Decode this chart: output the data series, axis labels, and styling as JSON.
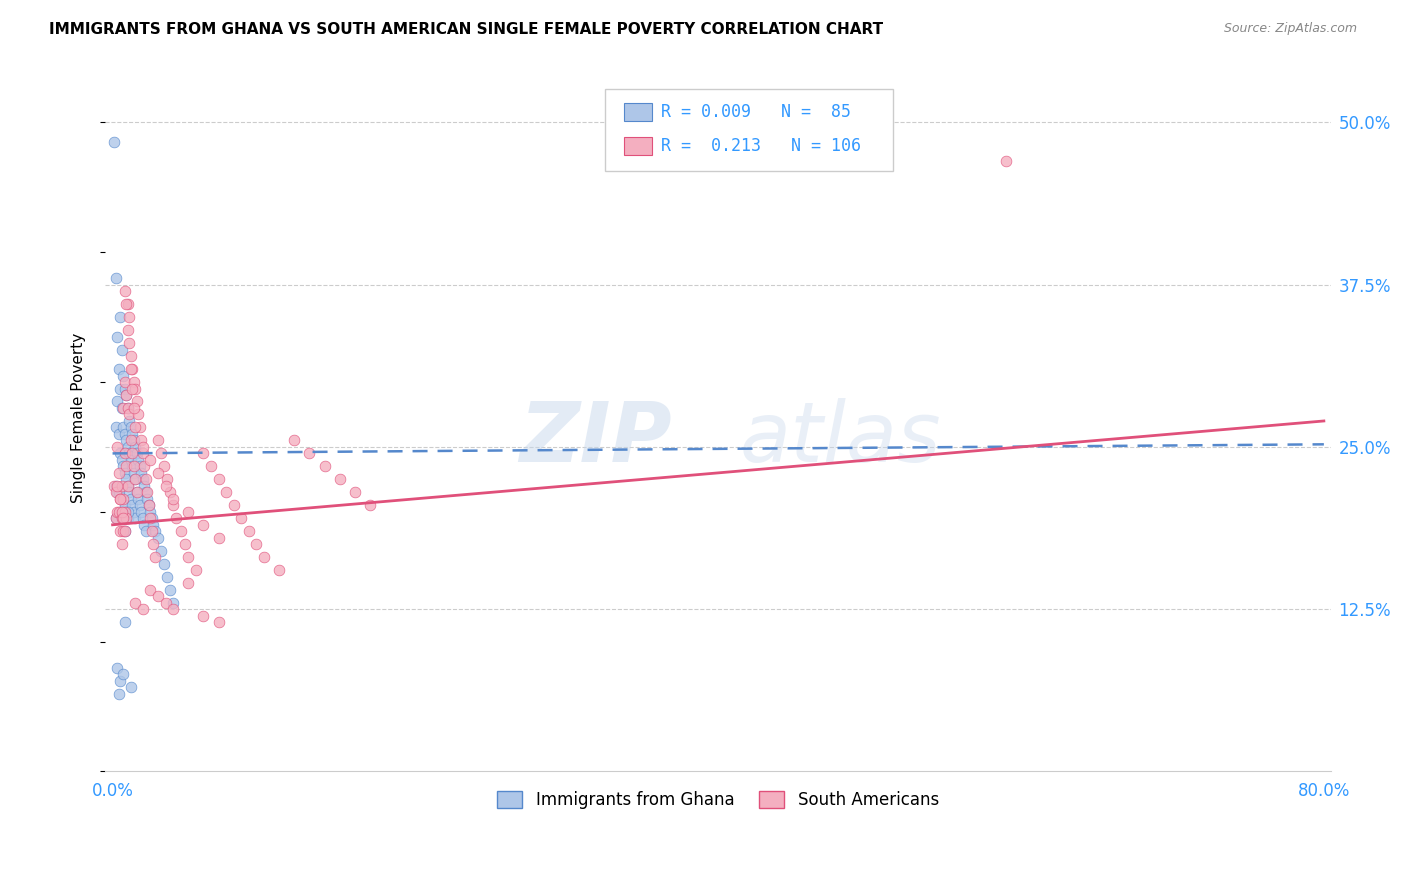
{
  "title": "IMMIGRANTS FROM GHANA VS SOUTH AMERICAN SINGLE FEMALE POVERTY CORRELATION CHART",
  "source": "Source: ZipAtlas.com",
  "ylabel": "Single Female Poverty",
  "legend_label1": "Immigrants from Ghana",
  "legend_label2": "South Americans",
  "R1": 0.009,
  "N1": 85,
  "R2": 0.213,
  "N2": 106,
  "color1": "#aec6e8",
  "color2": "#f4afc0",
  "line_color1": "#5588cc",
  "line_color2": "#e0507a",
  "xlim_min": 0.0,
  "xlim_max": 0.8,
  "ylim_min": 0.0,
  "ylim_max": 0.545,
  "ghana_x": [
    0.001,
    0.002,
    0.002,
    0.002,
    0.003,
    0.003,
    0.003,
    0.004,
    0.004,
    0.004,
    0.005,
    0.005,
    0.005,
    0.005,
    0.006,
    0.006,
    0.006,
    0.006,
    0.007,
    0.007,
    0.007,
    0.007,
    0.008,
    0.008,
    0.008,
    0.008,
    0.008,
    0.009,
    0.009,
    0.009,
    0.009,
    0.01,
    0.01,
    0.01,
    0.01,
    0.011,
    0.011,
    0.011,
    0.012,
    0.012,
    0.012,
    0.013,
    0.013,
    0.013,
    0.014,
    0.014,
    0.014,
    0.015,
    0.015,
    0.015,
    0.016,
    0.016,
    0.017,
    0.017,
    0.018,
    0.018,
    0.019,
    0.019,
    0.02,
    0.02,
    0.021,
    0.021,
    0.022,
    0.022,
    0.023,
    0.024,
    0.025,
    0.026,
    0.027,
    0.028,
    0.03,
    0.032,
    0.034,
    0.036,
    0.038,
    0.04,
    0.002,
    0.01,
    0.012,
    0.006,
    0.008,
    0.003,
    0.005,
    0.007,
    0.004
  ],
  "ghana_y": [
    0.485,
    0.38,
    0.265,
    0.195,
    0.335,
    0.285,
    0.215,
    0.31,
    0.26,
    0.215,
    0.35,
    0.295,
    0.245,
    0.2,
    0.325,
    0.28,
    0.24,
    0.195,
    0.305,
    0.265,
    0.235,
    0.2,
    0.295,
    0.26,
    0.23,
    0.205,
    0.185,
    0.29,
    0.255,
    0.225,
    0.2,
    0.28,
    0.25,
    0.22,
    0.195,
    0.27,
    0.245,
    0.215,
    0.265,
    0.24,
    0.21,
    0.26,
    0.235,
    0.205,
    0.255,
    0.23,
    0.2,
    0.25,
    0.225,
    0.195,
    0.245,
    0.215,
    0.24,
    0.21,
    0.235,
    0.205,
    0.23,
    0.2,
    0.225,
    0.195,
    0.22,
    0.19,
    0.215,
    0.185,
    0.21,
    0.205,
    0.2,
    0.195,
    0.19,
    0.185,
    0.18,
    0.17,
    0.16,
    0.15,
    0.14,
    0.13,
    0.22,
    0.2,
    0.065,
    0.2,
    0.115,
    0.08,
    0.07,
    0.075,
    0.06
  ],
  "sa_x": [
    0.001,
    0.002,
    0.002,
    0.003,
    0.003,
    0.004,
    0.004,
    0.005,
    0.005,
    0.006,
    0.006,
    0.006,
    0.007,
    0.007,
    0.007,
    0.008,
    0.008,
    0.008,
    0.009,
    0.009,
    0.009,
    0.01,
    0.01,
    0.01,
    0.011,
    0.011,
    0.012,
    0.012,
    0.013,
    0.013,
    0.014,
    0.014,
    0.015,
    0.015,
    0.016,
    0.016,
    0.017,
    0.018,
    0.019,
    0.02,
    0.021,
    0.022,
    0.023,
    0.024,
    0.025,
    0.026,
    0.027,
    0.028,
    0.03,
    0.032,
    0.034,
    0.036,
    0.038,
    0.04,
    0.042,
    0.045,
    0.048,
    0.05,
    0.055,
    0.06,
    0.065,
    0.07,
    0.075,
    0.08,
    0.085,
    0.09,
    0.095,
    0.1,
    0.11,
    0.12,
    0.13,
    0.14,
    0.15,
    0.16,
    0.17,
    0.008,
    0.009,
    0.01,
    0.011,
    0.012,
    0.013,
    0.014,
    0.015,
    0.02,
    0.025,
    0.03,
    0.035,
    0.04,
    0.05,
    0.06,
    0.07,
    0.003,
    0.005,
    0.006,
    0.007,
    0.008,
    0.59,
    0.015,
    0.02,
    0.025,
    0.03,
    0.035,
    0.04,
    0.05,
    0.06,
    0.07
  ],
  "sa_y": [
    0.22,
    0.215,
    0.195,
    0.25,
    0.2,
    0.23,
    0.2,
    0.21,
    0.185,
    0.22,
    0.195,
    0.175,
    0.28,
    0.21,
    0.185,
    0.3,
    0.245,
    0.2,
    0.29,
    0.235,
    0.195,
    0.36,
    0.28,
    0.22,
    0.35,
    0.275,
    0.32,
    0.255,
    0.31,
    0.245,
    0.3,
    0.235,
    0.295,
    0.225,
    0.285,
    0.215,
    0.275,
    0.265,
    0.255,
    0.245,
    0.235,
    0.225,
    0.215,
    0.205,
    0.195,
    0.185,
    0.175,
    0.165,
    0.255,
    0.245,
    0.235,
    0.225,
    0.215,
    0.205,
    0.195,
    0.185,
    0.175,
    0.165,
    0.155,
    0.245,
    0.235,
    0.225,
    0.215,
    0.205,
    0.195,
    0.185,
    0.175,
    0.165,
    0.155,
    0.255,
    0.245,
    0.235,
    0.225,
    0.215,
    0.205,
    0.37,
    0.36,
    0.34,
    0.33,
    0.31,
    0.295,
    0.28,
    0.265,
    0.25,
    0.24,
    0.23,
    0.22,
    0.21,
    0.2,
    0.19,
    0.18,
    0.22,
    0.21,
    0.2,
    0.195,
    0.185,
    0.47,
    0.13,
    0.125,
    0.14,
    0.135,
    0.13,
    0.125,
    0.145,
    0.12,
    0.115
  ]
}
